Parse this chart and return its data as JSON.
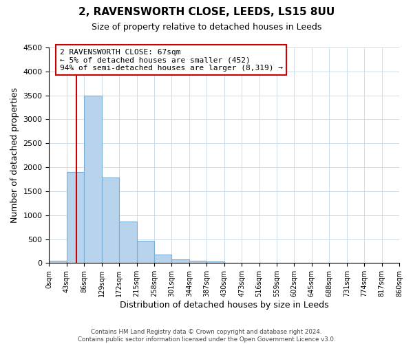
{
  "title": "2, RAVENSWORTH CLOSE, LEEDS, LS15 8UU",
  "subtitle": "Size of property relative to detached houses in Leeds",
  "xlabel": "Distribution of detached houses by size in Leeds",
  "ylabel": "Number of detached properties",
  "bar_values": [
    50,
    1900,
    3500,
    1780,
    860,
    460,
    175,
    80,
    50,
    30,
    0,
    0,
    0,
    0,
    0,
    0,
    0,
    0,
    0,
    0
  ],
  "bar_labels": [
    "0sqm",
    "43sqm",
    "86sqm",
    "129sqm",
    "172sqm",
    "215sqm",
    "258sqm",
    "301sqm",
    "344sqm",
    "387sqm",
    "430sqm",
    "473sqm",
    "516sqm",
    "559sqm",
    "602sqm",
    "645sqm",
    "688sqm",
    "731sqm",
    "774sqm",
    "817sqm",
    "860sqm"
  ],
  "bar_color": "#b8d4ec",
  "bar_edge_color": "#7aadd4",
  "ylim": [
    0,
    4500
  ],
  "yticks": [
    0,
    500,
    1000,
    1500,
    2000,
    2500,
    3000,
    3500,
    4000,
    4500
  ],
  "property_line_x": 67,
  "property_line_color": "#cc0000",
  "annotation_text": "2 RAVENSWORTH CLOSE: 67sqm\n← 5% of detached houses are smaller (452)\n94% of semi-detached houses are larger (8,319) →",
  "annotation_box_color": "#ffffff",
  "annotation_box_edge": "#cc0000",
  "footer_line1": "Contains HM Land Registry data © Crown copyright and database right 2024.",
  "footer_line2": "Contains public sector information licensed under the Open Government Licence v3.0.",
  "background_color": "#ffffff",
  "grid_color": "#ccdde8",
  "bin_width": 43
}
